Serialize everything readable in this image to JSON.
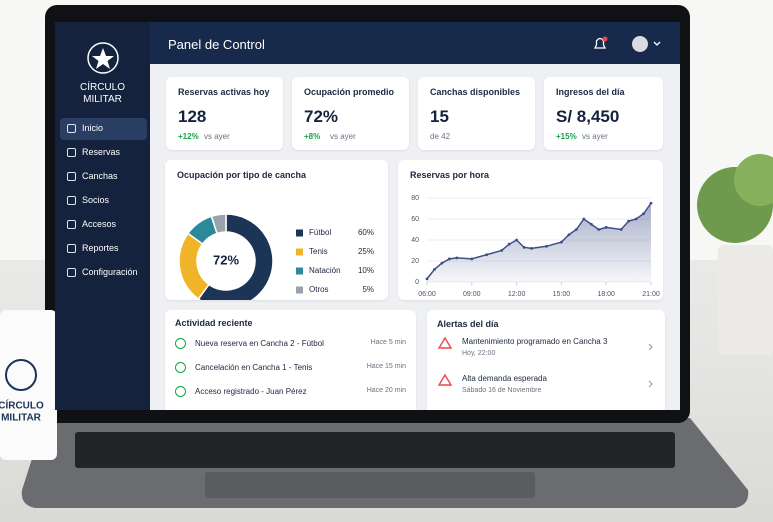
{
  "brand": {
    "lines": [
      "CÍRCULO",
      "MILITAR"
    ]
  },
  "nav": [
    "Inicio",
    "Reservas",
    "Canchas",
    "Socios",
    "Accesos",
    "Reportes",
    "Configuración"
  ],
  "header": {
    "title": "Panel de Control"
  },
  "kpis": [
    {
      "label": "Reservas activas hoy",
      "value": "128",
      "change": "+12%",
      "note": "vs ayer"
    },
    {
      "label": "Ocupación promedio",
      "value": "72%",
      "change": "+8%",
      "note": "vs ayer"
    },
    {
      "label": "Canchas disponibles",
      "value": "15",
      "note": "de 42"
    },
    {
      "label": "Ingresos del día",
      "value": "S/ 8,450",
      "change": "+15%",
      "note": "vs ayer"
    }
  ],
  "chart_data": [
    {
      "type": "donut",
      "title": "Ocupación por tipo de cancha",
      "center_label": "72%",
      "categories": [
        "Fútbol",
        "Tenis",
        "Natación",
        "Otros"
      ],
      "values": [
        60,
        25,
        10,
        5
      ],
      "value_labels": [
        "60%",
        "25%",
        "10%",
        "5%"
      ],
      "colors": [
        "#1c3557",
        "#f0b429",
        "#2a8a9a",
        "#9aa3ad"
      ]
    },
    {
      "type": "area",
      "title": "Reservas por hora",
      "color": "#3d4f86",
      "grid": true,
      "x": [
        6,
        6.5,
        7,
        7.5,
        8,
        9,
        10,
        11,
        11.5,
        12,
        12.5,
        13,
        14,
        15,
        15.5,
        16,
        16.5,
        17,
        17.5,
        18,
        19,
        19.5,
        20,
        20.5,
        21
      ],
      "values": [
        3,
        12,
        18,
        22,
        23,
        22,
        26,
        30,
        36,
        40,
        33,
        32,
        34,
        38,
        45,
        50,
        60,
        55,
        50,
        52,
        50,
        58,
        60,
        65,
        75
      ],
      "xlim": [
        6,
        21
      ],
      "ylim": [
        0,
        80
      ],
      "xticks": [
        {
          "value": 6,
          "label": "06:00"
        },
        {
          "value": 9,
          "label": "09:00"
        },
        {
          "value": 12,
          "label": "12:00"
        },
        {
          "value": 15,
          "label": "15:00"
        },
        {
          "value": 18,
          "label": "18:00"
        },
        {
          "value": 21,
          "label": "21:00"
        }
      ],
      "yticks": [
        0,
        20,
        40,
        60,
        80
      ]
    }
  ],
  "activity": {
    "title": "Actividad reciente",
    "items": [
      {
        "text": "Nueva reserva en Cancha 2 - Fútbol",
        "time": "Hace 5 min"
      },
      {
        "text": "Cancelación en Cancha 1 - Tenis",
        "time": "Hace 15 min"
      },
      {
        "text": "Acceso registrado - Juan Pérez",
        "time": "Hace 20 min"
      }
    ]
  },
  "alerts": {
    "title": "Alertas del día",
    "items": [
      {
        "text": "Mantenimiento programado en Cancha 3",
        "detail": "Hoy, 22:00"
      },
      {
        "text": "Alta demanda esperada",
        "detail": "Sábado 16 de Noviembre"
      }
    ]
  }
}
